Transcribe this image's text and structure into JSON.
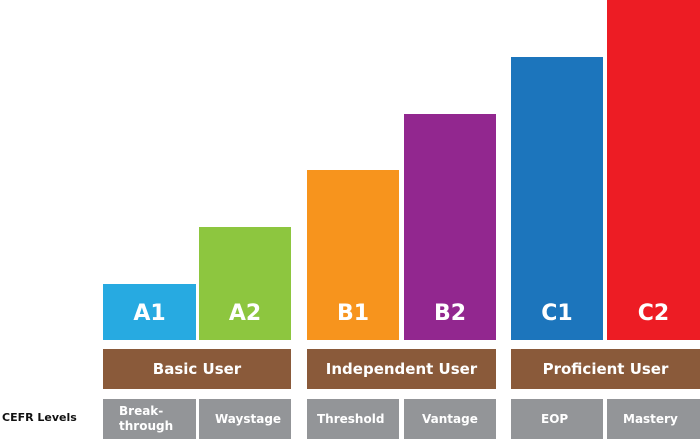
{
  "row_label": "CEFR Levels",
  "levels": [
    {
      "code": "A1",
      "descriptor": "Break-\nthrough"
    },
    {
      "code": "A2",
      "descriptor": "Waystage"
    },
    {
      "code": "B1",
      "descriptor": "Threshold"
    },
    {
      "code": "B2",
      "descriptor": "Vantage"
    },
    {
      "code": "C1",
      "descriptor": "EOP"
    },
    {
      "code": "C2",
      "descriptor": "Mastery"
    }
  ],
  "groups": [
    "Basic User",
    "Independent User",
    "Proficient User"
  ]
}
